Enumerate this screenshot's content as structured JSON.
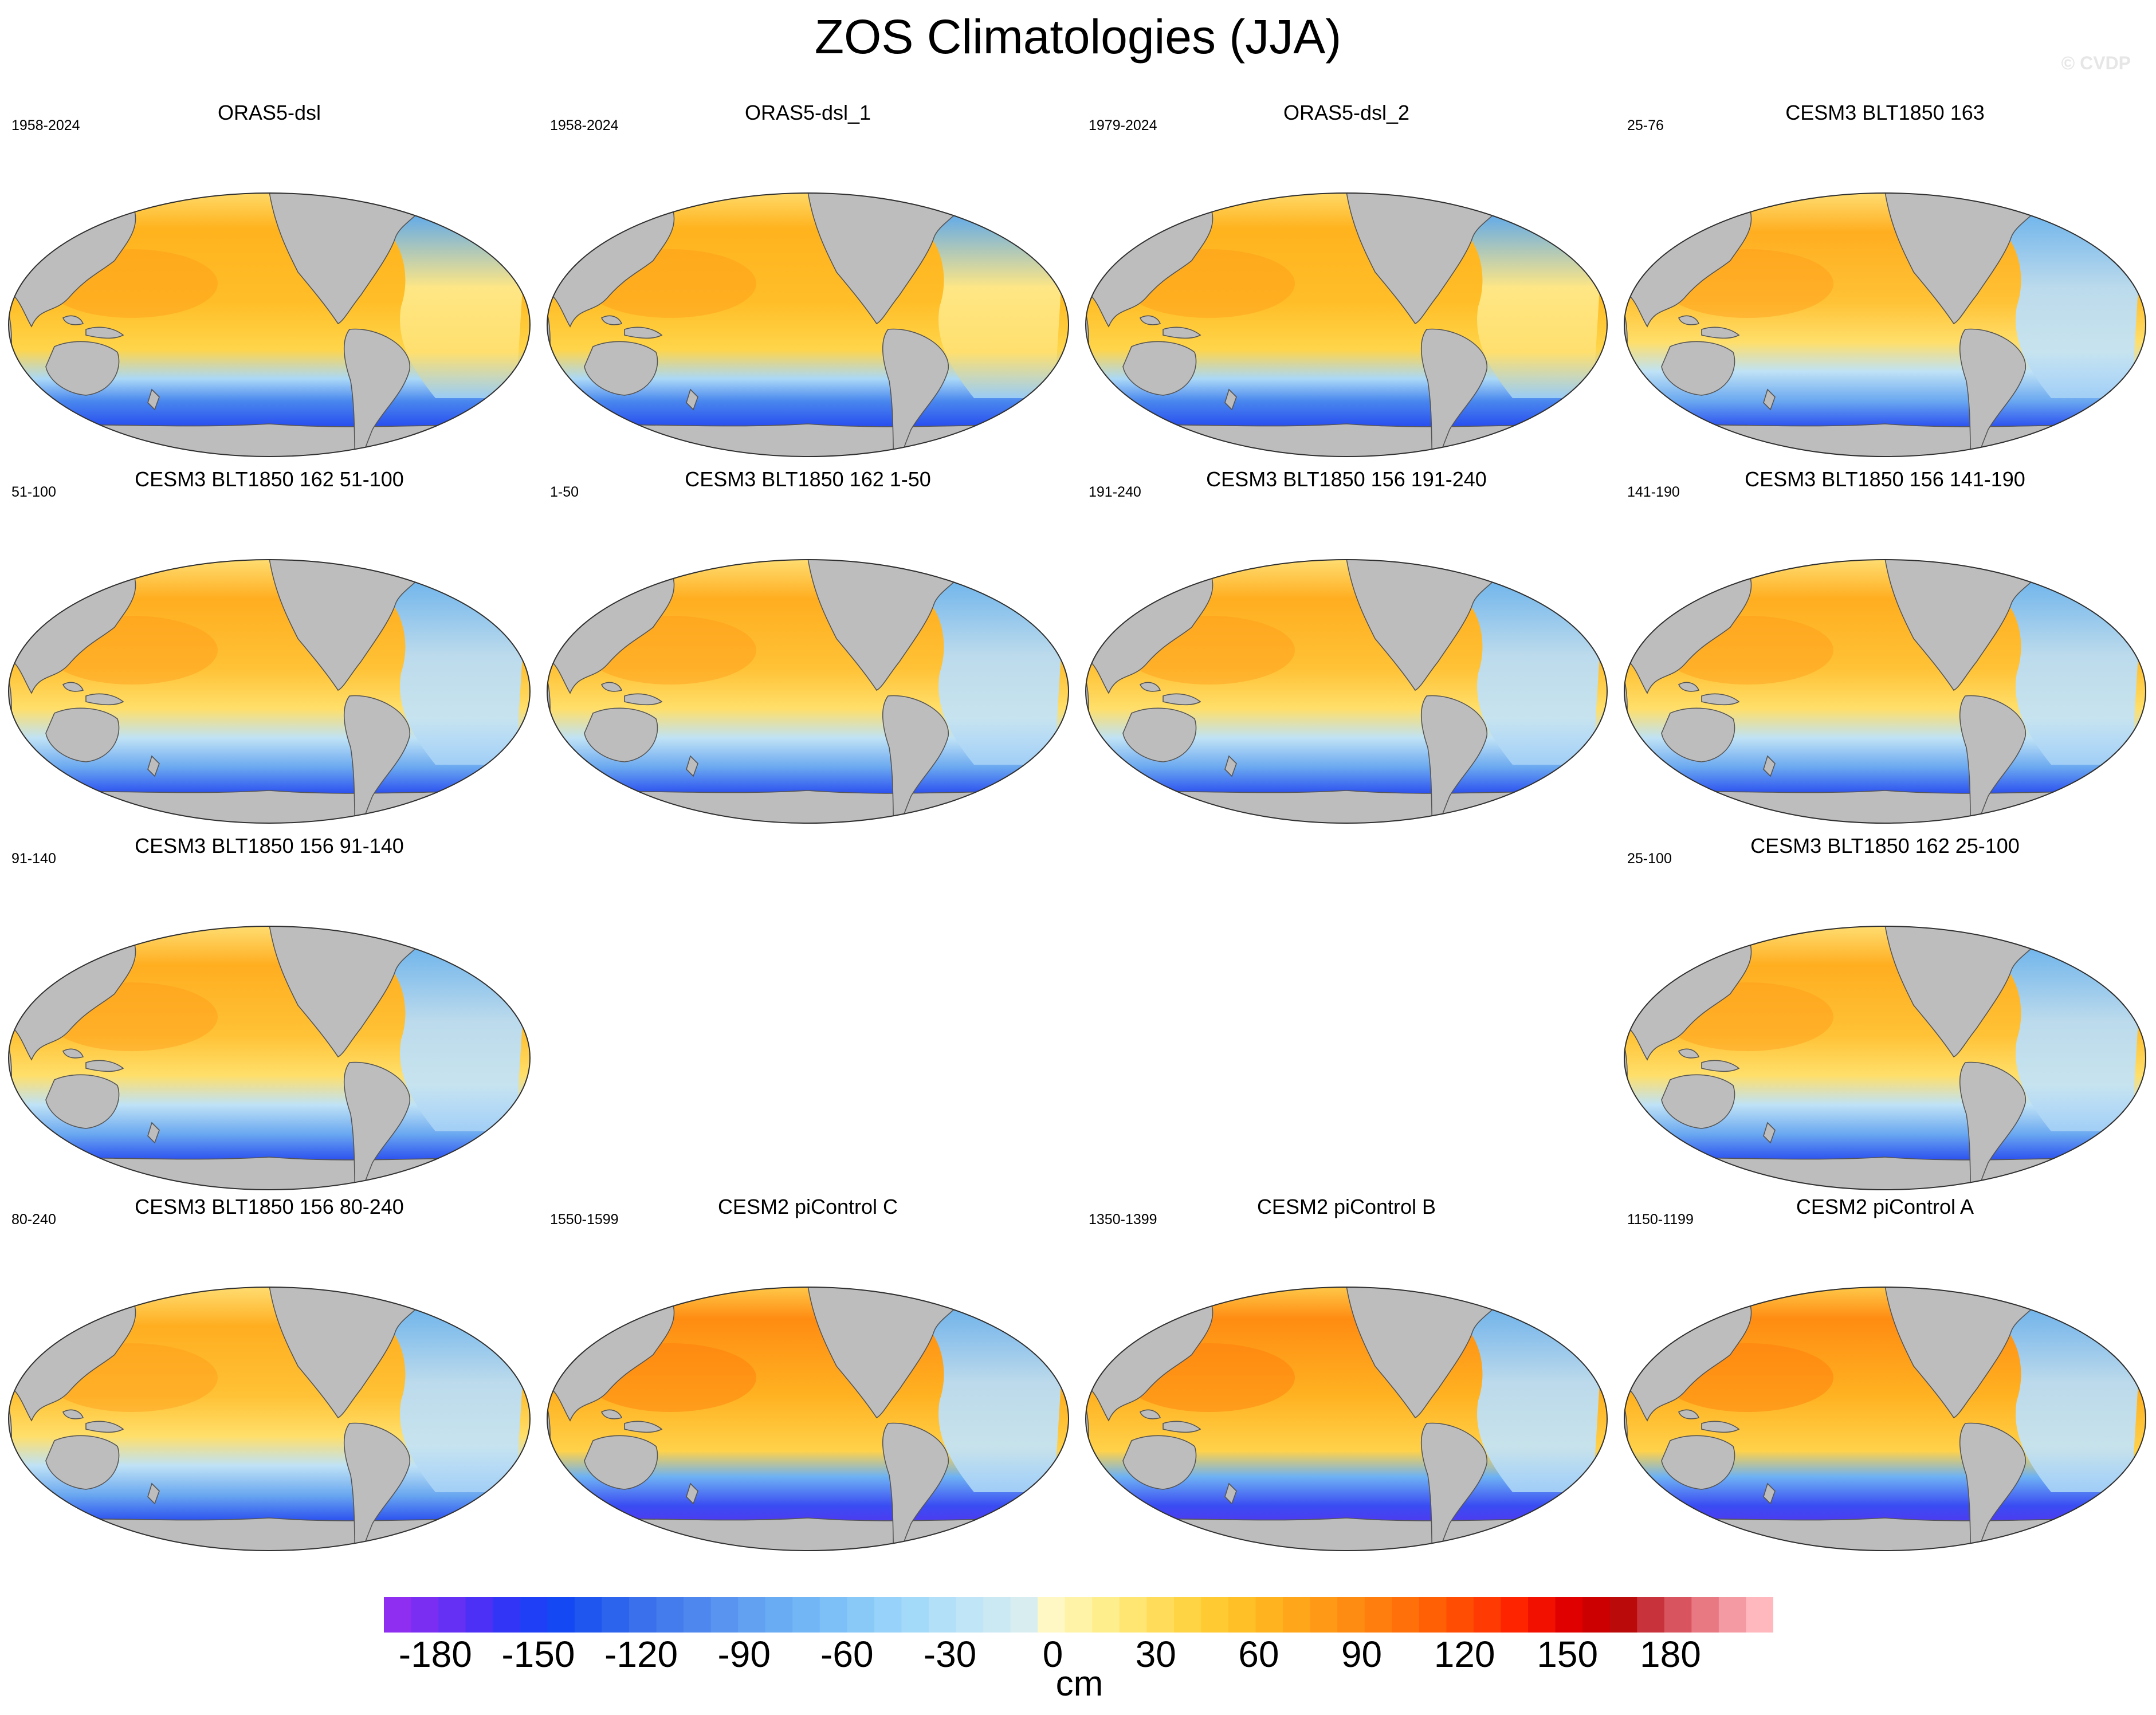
{
  "title": "ZOS Climatologies (JJA)",
  "watermark": "© CVDP",
  "panels": [
    {
      "title": "ORAS5-dsl",
      "years": "1958-2024",
      "style": "reanalysis"
    },
    {
      "title": "ORAS5-dsl_1",
      "years": "1958-2024",
      "style": "reanalysis"
    },
    {
      "title": "ORAS5-dsl_2",
      "years": "1979-2024",
      "style": "reanalysis"
    },
    {
      "title": "CESM3 BLT1850 163",
      "years": "25-76",
      "style": "cesm3"
    },
    {
      "title": "CESM3 BLT1850 162 51-100",
      "years": "51-100",
      "style": "cesm3"
    },
    {
      "title": "CESM3 BLT1850 162 1-50",
      "years": "1-50",
      "style": "cesm3"
    },
    {
      "title": "CESM3 BLT1850 156 191-240",
      "years": "191-240",
      "style": "cesm3"
    },
    {
      "title": "CESM3 BLT1850 156 141-190",
      "years": "141-190",
      "style": "cesm3"
    },
    {
      "title": "CESM3 BLT1850 156 91-140",
      "years": "91-140",
      "style": "cesm3"
    },
    {
      "title": "CESM3 BLT1850 162 25-100",
      "years": "25-100",
      "style": "cesm3"
    },
    {
      "title": "CESM3 BLT1850 156 80-240",
      "years": "80-240",
      "style": "cesm3"
    },
    {
      "title": "CESM2 piControl C",
      "years": "1550-1599",
      "style": "cesm2"
    },
    {
      "title": "CESM2 piControl B",
      "years": "1350-1399",
      "style": "cesm2"
    },
    {
      "title": "CESM2 piControl A",
      "years": "1150-1199",
      "style": "cesm2"
    }
  ],
  "colorbar": {
    "unit": "cm",
    "min": -195,
    "max": 210,
    "ticks": [
      -180,
      -150,
      -120,
      -90,
      -60,
      -30,
      0,
      30,
      60,
      90,
      120,
      150,
      180
    ],
    "colors": [
      "#8f2ef0",
      "#7a2ef2",
      "#6530f3",
      "#4c30f5",
      "#3335f6",
      "#1f3ff6",
      "#1348f3",
      "#1f56f0",
      "#2d64ee",
      "#3a70ec",
      "#447ced",
      "#4e88ee",
      "#5894f0",
      "#62a0f2",
      "#6aacf4",
      "#72b6f6",
      "#7cc0f7",
      "#88c9f8",
      "#96d2f9",
      "#a4daf9",
      "#b2e0f8",
      "#bfe5f6",
      "#cbe9f3",
      "#d8edf0",
      "#fff8c4",
      "#fff3a8",
      "#ffee8c",
      "#ffe672",
      "#ffdd5a",
      "#ffd444",
      "#ffca32",
      "#ffbf26",
      "#ffb31e",
      "#ffa61a",
      "#ff9916",
      "#ff8c12",
      "#ff7e0e",
      "#ff700a",
      "#ff6006",
      "#ff4e04",
      "#ff3a02",
      "#ff2400",
      "#f21000",
      "#e00000",
      "#cc0000",
      "#ba0a0a",
      "#c8323a",
      "#d85560",
      "#e87882",
      "#f49aa2",
      "#ffb8be"
    ]
  },
  "colors": {
    "land": "#bdbdbd",
    "coast": "#555555",
    "boundary": "#303030"
  }
}
